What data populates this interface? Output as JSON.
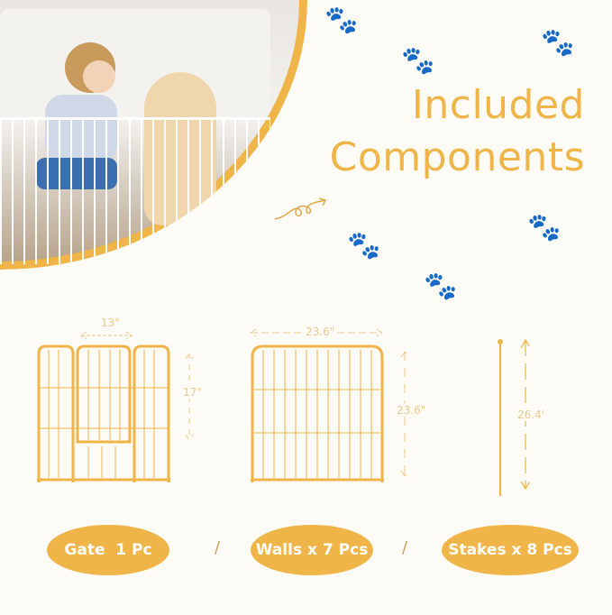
{
  "title": {
    "line1": "Included",
    "line2": "Components"
  },
  "components": [
    {
      "name": "gate",
      "dimensions": {
        "width": "13\"",
        "height": "17\""
      },
      "label": "Gate  1 Pc"
    },
    {
      "name": "walls",
      "dimensions": {
        "width": "23.6\"",
        "height": "23.6\""
      },
      "label": "Walls x 7 Pcs"
    },
    {
      "name": "stakes",
      "dimensions": {
        "height": "26.4'"
      },
      "label": "Stakes x 8 Pcs"
    }
  ],
  "separators": [
    "/",
    "/"
  ],
  "colors": {
    "accent": "#f0b548",
    "background": "#fdfbf5",
    "dimension": "#e9c98e"
  }
}
